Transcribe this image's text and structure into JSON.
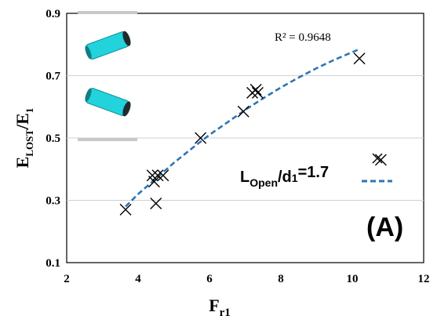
{
  "chart_data": {
    "type": "scatter",
    "xlabel_main": "F",
    "xlabel_sub": "r1",
    "ylabel_main_1": "E",
    "ylabel_sub_1": "LOST",
    "ylabel_mid": "/E",
    "ylabel_sub_2": "1",
    "xlim": [
      2,
      12
    ],
    "ylim": [
      0.1,
      0.9
    ],
    "x_ticks": [
      2,
      4,
      6,
      8,
      10,
      12
    ],
    "y_ticks": [
      0.1,
      0.3,
      0.5,
      0.7,
      0.9
    ],
    "x_tick_labels": [
      "2",
      "4",
      "6",
      "8",
      "10",
      "12"
    ],
    "y_tick_labels": [
      "0.1",
      "0.3",
      "0.5",
      "0.7",
      "0.9"
    ],
    "grid": "horizontal",
    "series": [
      {
        "marker": "x",
        "color": "#000000",
        "x": [
          3.65,
          4.4,
          4.45,
          4.5,
          4.55,
          4.7,
          5.75,
          6.95,
          7.2,
          7.3,
          7.35,
          10.2,
          10.8
        ],
        "y": [
          0.27,
          0.38,
          0.36,
          0.29,
          0.38,
          0.38,
          0.5,
          0.585,
          0.645,
          0.655,
          0.645,
          0.755,
          0.43
        ]
      },
      {
        "style": "dashed",
        "color": "#2e75b6",
        "x": [
          3.65,
          4.0,
          4.5,
          5.0,
          5.5,
          6.0,
          6.5,
          7.0,
          7.5,
          8.0,
          8.5,
          9.0,
          9.5,
          10.2
        ],
        "y": [
          0.28,
          0.32,
          0.37,
          0.42,
          0.466,
          0.51,
          0.55,
          0.59,
          0.627,
          0.662,
          0.694,
          0.724,
          0.751,
          0.785
        ]
      }
    ],
    "annotations": {
      "r_squared": "R² = 0.9648",
      "panel_label": "(A)"
    },
    "legend": {
      "placement": "center-right",
      "marker_entry": "",
      "line_entry_main_1": "L",
      "line_entry_sub_1": "Open",
      "line_entry_main_2": "/d",
      "line_entry_sub_2": "1",
      "line_entry_tail": "=1.7"
    },
    "inset_colors": {
      "pipe": "#22d3dc",
      "end_cap": "#1f2a2e",
      "plate": "#c8c8c8"
    }
  }
}
